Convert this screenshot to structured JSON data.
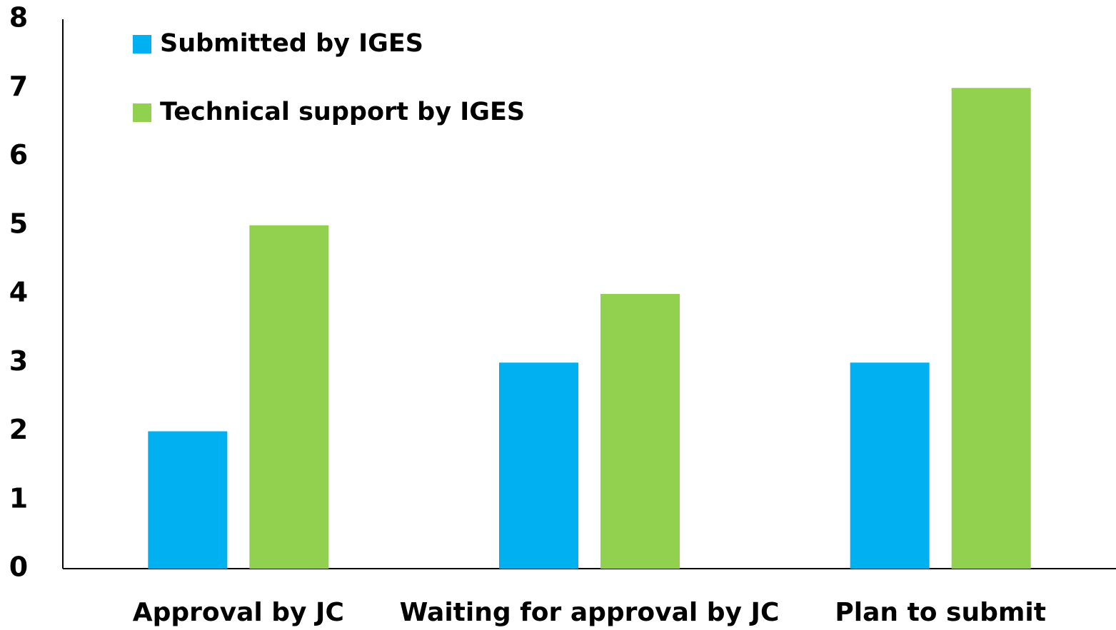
{
  "chart_data": {
    "type": "bar",
    "categories": [
      "Approval by JC",
      "Waiting for approval by JC",
      "Plan to submit"
    ],
    "series": [
      {
        "name": "Submitted by IGES",
        "color": "#00b0f0",
        "values": [
          2,
          3,
          3
        ]
      },
      {
        "name": "Technical support by IGES",
        "color": "#92d050",
        "values": [
          5,
          4,
          7
        ]
      }
    ],
    "ylim": [
      0,
      8
    ],
    "yticks": [
      0,
      1,
      2,
      3,
      4,
      5,
      6,
      7,
      8
    ],
    "grid": false,
    "legend": "upper left"
  }
}
